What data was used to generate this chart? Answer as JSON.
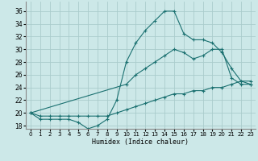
{
  "xlabel": "Humidex (Indice chaleur)",
  "xlim": [
    -0.5,
    23.5
  ],
  "ylim": [
    17.5,
    37.5
  ],
  "xticks": [
    0,
    1,
    2,
    3,
    4,
    5,
    6,
    7,
    8,
    9,
    10,
    11,
    12,
    13,
    14,
    15,
    16,
    17,
    18,
    19,
    20,
    21,
    22,
    23
  ],
  "yticks": [
    18,
    20,
    22,
    24,
    26,
    28,
    30,
    32,
    34,
    36
  ],
  "bg_color": "#cce8e8",
  "grid_color": "#aacccc",
  "line_color": "#1a7070",
  "line1_x": [
    0,
    1,
    2,
    3,
    4,
    5,
    6,
    7,
    8,
    9,
    10,
    11,
    12,
    13,
    14,
    15,
    16,
    17,
    18,
    19,
    20,
    21,
    22,
    23
  ],
  "line1_y": [
    20,
    19,
    19,
    19,
    19,
    18.5,
    17.5,
    18,
    19,
    22,
    28,
    31,
    33,
    34.5,
    36,
    36,
    32.5,
    31.5,
    31.5,
    31,
    29.5,
    27,
    25,
    24.5
  ],
  "line2_x": [
    0,
    10,
    11,
    12,
    13,
    14,
    15,
    16,
    17,
    18,
    19,
    20,
    21,
    22,
    23
  ],
  "line2_y": [
    20,
    24.5,
    26,
    27,
    28,
    29,
    30,
    29.5,
    28.5,
    29,
    30,
    30,
    25.5,
    24.5,
    24.5
  ],
  "line3_x": [
    0,
    1,
    2,
    3,
    4,
    5,
    6,
    7,
    8,
    9,
    10,
    11,
    12,
    13,
    14,
    15,
    16,
    17,
    18,
    19,
    20,
    21,
    22,
    23
  ],
  "line3_y": [
    20,
    19.5,
    19.5,
    19.5,
    19.5,
    19.5,
    19.5,
    19.5,
    19.5,
    20,
    20.5,
    21,
    21.5,
    22,
    22.5,
    23,
    23,
    23.5,
    23.5,
    24,
    24,
    24.5,
    25,
    25
  ]
}
